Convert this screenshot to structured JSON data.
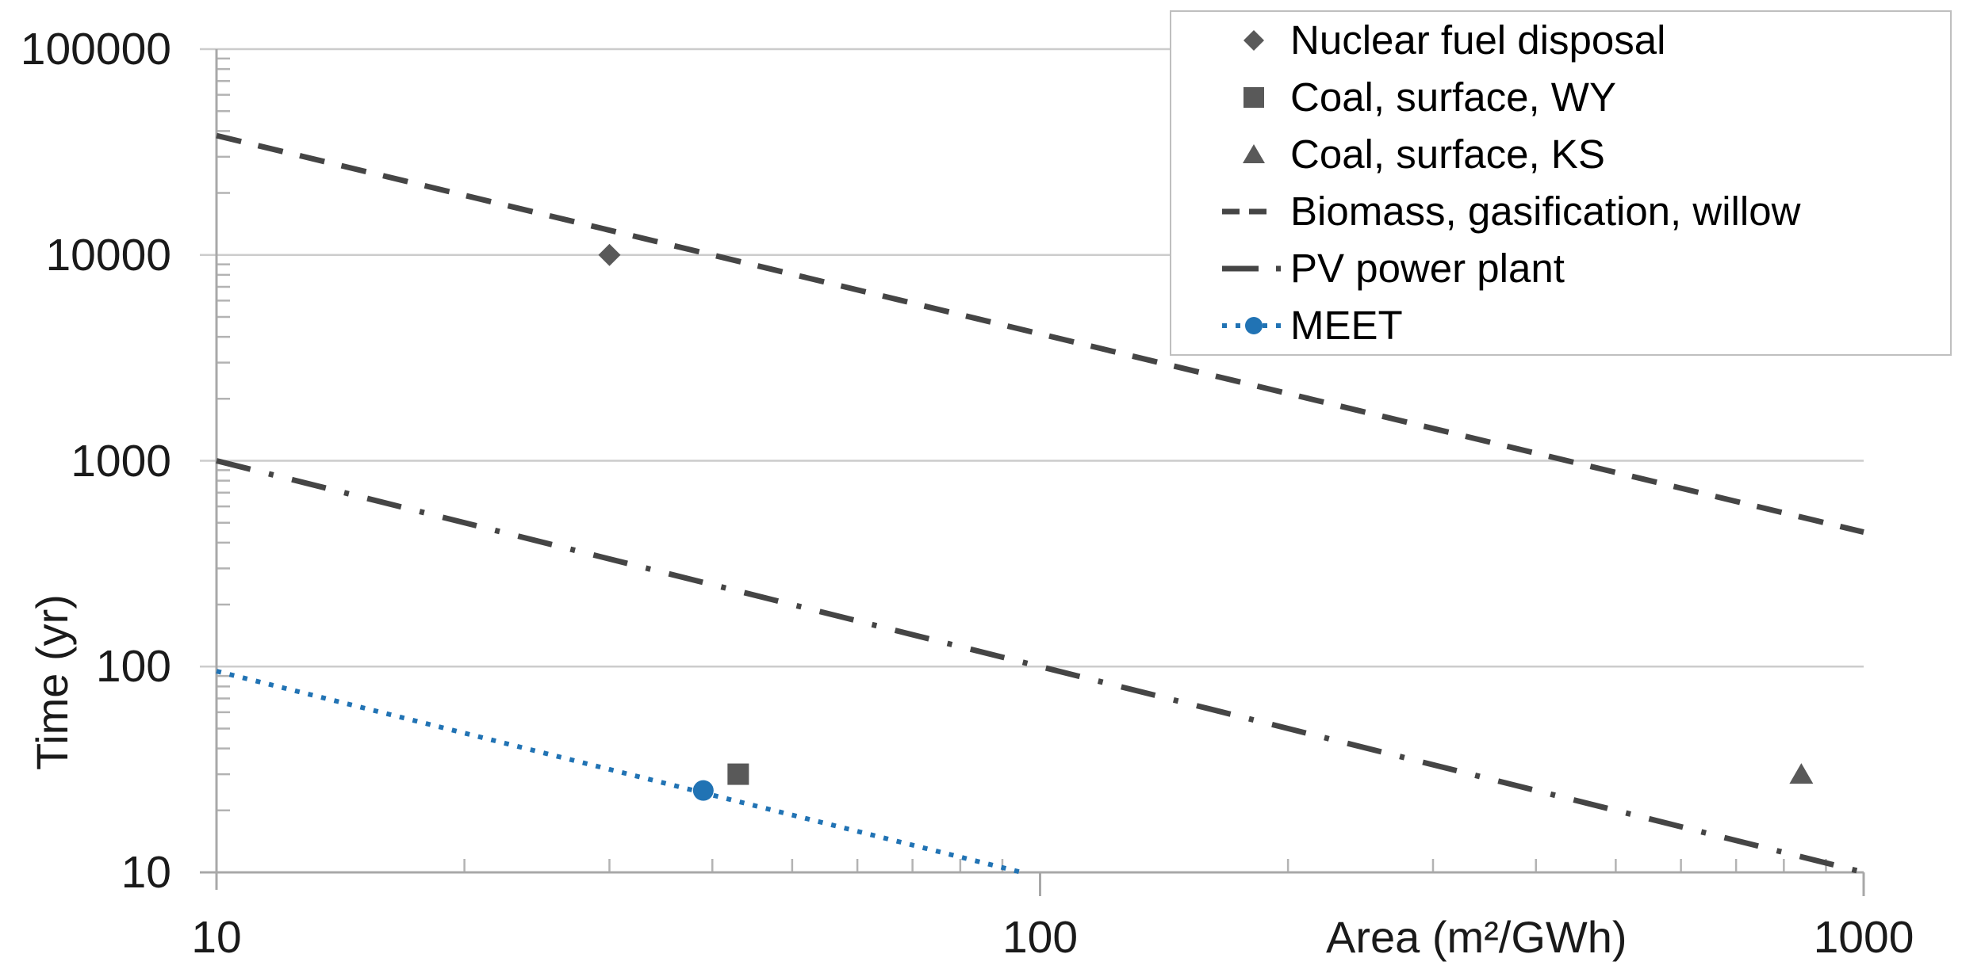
{
  "chart_data": {
    "type": "scatter",
    "scale": "log-log",
    "title": "",
    "x_axis": {
      "label": "Area (m²/GWh)",
      "min": 10,
      "max": 1000,
      "ticks": [
        10,
        100,
        1000
      ],
      "tick_labels": [
        "10",
        "100",
        "1000"
      ]
    },
    "y_axis": {
      "label": "Time (yr)",
      "min": 10,
      "max": 100000,
      "ticks": [
        100000,
        10000,
        1000,
        100,
        10
      ],
      "tick_labels": [
        "100000",
        "10000",
        "1000",
        "100",
        "10"
      ]
    },
    "grid": "horizontal-major-only",
    "legend_position": "top-right",
    "colors": {
      "marker_gray": "#595959",
      "line_gray": "#454545",
      "blue": "#2173b4",
      "gridline": "#cccccc",
      "axis": "#a8a8a8",
      "tick": "#b3b3b3",
      "text": "#1a1a1a"
    },
    "series": [
      {
        "name": "Nuclear fuel disposal",
        "kind": "scatter",
        "marker": "diamond",
        "color": "#595959",
        "points": [
          [
            30,
            10000
          ]
        ]
      },
      {
        "name": "Coal, surface, WY",
        "kind": "scatter",
        "marker": "square",
        "color": "#595959",
        "points": [
          [
            43,
            30
          ]
        ]
      },
      {
        "name": "Coal, surface, KS",
        "kind": "scatter",
        "marker": "triangle",
        "color": "#595959",
        "points": [
          [
            840,
            30
          ]
        ]
      },
      {
        "name": "Biomass, gasification, willow",
        "kind": "line",
        "dash": "dashed",
        "color": "#454545",
        "points": [
          [
            10,
            38000
          ],
          [
            1000,
            450
          ]
        ]
      },
      {
        "name": "PV power plant",
        "kind": "line",
        "dash": "dashdot",
        "color": "#454545",
        "points": [
          [
            10,
            1000
          ],
          [
            1000,
            10
          ]
        ]
      },
      {
        "name": "MEET",
        "kind": "line",
        "dash": "dotted",
        "marker": "circle",
        "color": "#2173b4",
        "points": [
          [
            10,
            95
          ],
          [
            95,
            10
          ]
        ],
        "marker_points": [
          [
            39,
            25
          ]
        ]
      }
    ]
  }
}
